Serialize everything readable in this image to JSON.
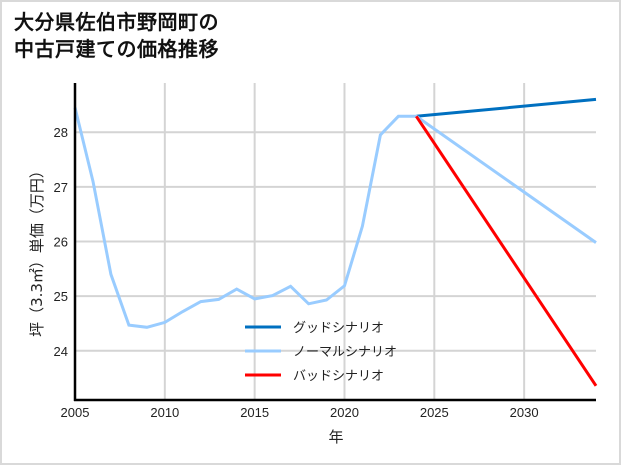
{
  "title_lines": [
    "大分県佐伯市野岡町の",
    "中古戸建ての価格推移"
  ],
  "chart_data": {
    "type": "line",
    "title": "大分県佐伯市野岡町の中古戸建ての価格推移",
    "xlabel": "年",
    "ylabel": "坪（3.3㎡）単価（万円）",
    "xlim": [
      2005,
      2034
    ],
    "ylim": [
      23.1,
      28.9
    ],
    "x_ticks": [
      2005,
      2010,
      2015,
      2020,
      2025,
      2030
    ],
    "y_ticks": [
      24,
      25,
      26,
      27,
      28
    ],
    "grid": true,
    "legend_position": "lower center",
    "series": [
      {
        "name": "グッドシナリオ",
        "color": "#0070c0",
        "x": [
          2024,
          2034
        ],
        "values": [
          28.29,
          28.6
        ]
      },
      {
        "name": "ノーマルシナリオ",
        "color": "#99ccff",
        "x": [
          2005,
          2006,
          2007,
          2008,
          2009,
          2010,
          2011,
          2012,
          2013,
          2014,
          2015,
          2016,
          2017,
          2018,
          2019,
          2020,
          2021,
          2022,
          2023,
          2024,
          2034
        ],
        "values": [
          28.45,
          27.1,
          25.4,
          24.47,
          24.43,
          24.52,
          24.72,
          24.9,
          24.94,
          25.13,
          24.95,
          25.01,
          25.18,
          24.86,
          24.93,
          25.19,
          26.28,
          27.95,
          28.29,
          28.29,
          25.98
        ]
      },
      {
        "name": "バッドシナリオ",
        "color": "#ff0000",
        "x": [
          2024,
          2034
        ],
        "values": [
          28.29,
          23.36
        ]
      }
    ]
  }
}
